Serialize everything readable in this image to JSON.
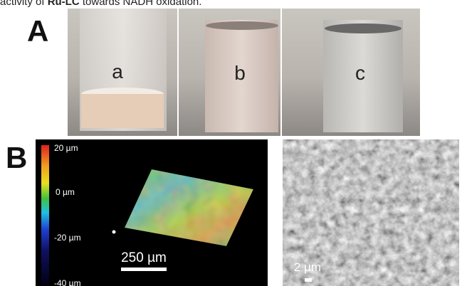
{
  "caption": {
    "parts": [
      "activity of ",
      "Ru-LC",
      " towards NADH oxidation."
    ]
  },
  "panel_a": {
    "label": "A",
    "vials": [
      "a",
      "b",
      "c"
    ]
  },
  "panel_b": {
    "label": "B",
    "colorbar_ticks": [
      "20 µm",
      "0 µm",
      "-20 µm",
      "-40 µm"
    ],
    "scale_bar": "250 µm",
    "sem_scale_bar": "2 µm"
  }
}
